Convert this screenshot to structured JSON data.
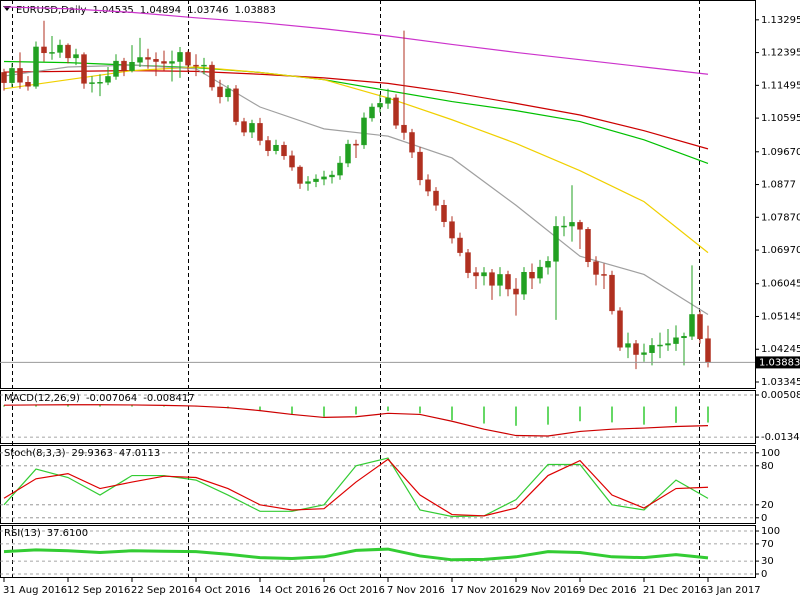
{
  "chart_data": [
    {
      "type": "candlestick",
      "symbol": "EURUSD,Daily",
      "categories": [
        "31 Aug 2016",
        null,
        null,
        null,
        null,
        null,
        null,
        null,
        "12 Sep 2016",
        null,
        null,
        null,
        null,
        null,
        null,
        null,
        "22 Sep 2016",
        null,
        null,
        null,
        null,
        null,
        null,
        null,
        "4 Oct 2016",
        null,
        null,
        null,
        null,
        null,
        null,
        null,
        "14 Oct 2016",
        null,
        null,
        null,
        null,
        null,
        null,
        null,
        "26 Oct 2016",
        null,
        null,
        null,
        null,
        null,
        null,
        null,
        "7 Nov 2016",
        null,
        null,
        null,
        null,
        null,
        null,
        null,
        "17 Nov 2016",
        null,
        null,
        null,
        null,
        null,
        null,
        null,
        "29 Nov 2016",
        null,
        null,
        null,
        null,
        null,
        null,
        null,
        "9 Dec 2016",
        null,
        null,
        null,
        null,
        null,
        null,
        null,
        "21 Dec 2016",
        null,
        null,
        null,
        null,
        null,
        null,
        null,
        "3 Jan 2017"
      ],
      "open": [
        1.1185,
        1.1157,
        1.1196,
        1.1158,
        1.1147,
        1.1255,
        1.1239,
        1.124,
        1.126,
        1.1225,
        1.1234,
        1.1155,
        1.1157,
        1.1158,
        1.1174,
        1.1216,
        1.119,
        1.1213,
        1.1226,
        1.1221,
        1.1215,
        1.121,
        1.1215,
        1.124,
        1.1205,
        1.1203,
        1.1205,
        1.1145,
        1.1118,
        1.114,
        1.105,
        1.1021,
        1.1045,
        1.0998,
        1.097,
        1.0985,
        1.0956,
        1.0925,
        1.088,
        1.0885,
        1.0892,
        1.0898,
        1.0903,
        1.0936,
        1.0988,
        1.0986,
        1.106,
        1.109,
        1.11,
        1.1115,
        1.104,
        1.102,
        1.0966,
        1.089,
        1.0859,
        1.082,
        1.0775,
        1.073,
        1.069,
        1.0635,
        1.0626,
        1.0635,
        1.06,
        1.063,
        1.059,
        1.0576,
        1.0636,
        1.062,
        1.065,
        1.0666,
        1.0762,
        1.0763,
        1.0773,
        1.0754,
        1.0665,
        1.063,
        1.0628,
        1.053,
        1.043,
        1.044,
        1.041,
        1.0415,
        1.0435,
        1.0436,
        1.044,
        1.0456,
        1.046,
        1.052,
        1.04535
      ],
      "high": [
        1.1195,
        1.121,
        1.124,
        1.1175,
        1.127,
        1.1327,
        1.1285,
        1.1275,
        1.1265,
        1.125,
        1.124,
        1.1175,
        1.118,
        1.12,
        1.1235,
        1.1225,
        1.126,
        1.128,
        1.125,
        1.124,
        1.1245,
        1.1245,
        1.1255,
        1.1245,
        1.1235,
        1.1225,
        1.1215,
        1.1165,
        1.115,
        1.115,
        1.106,
        1.1055,
        1.106,
        1.101,
        1.1,
        1.0995,
        1.097,
        1.093,
        1.09,
        1.0905,
        1.0915,
        1.0915,
        1.0955,
        1.1,
        1.1,
        1.1075,
        1.11,
        1.1125,
        1.114,
        1.1125,
        1.13,
        1.103,
        1.098,
        1.0905,
        1.087,
        1.0835,
        1.079,
        1.0745,
        1.07,
        1.065,
        1.065,
        1.0645,
        1.065,
        1.064,
        1.062,
        1.065,
        1.066,
        1.067,
        1.068,
        1.079,
        1.079,
        1.0875,
        1.078,
        1.076,
        1.068,
        1.066,
        1.064,
        1.054,
        1.047,
        1.045,
        1.044,
        1.0455,
        1.047,
        1.048,
        1.049,
        1.047,
        1.0655,
        1.053,
        1.04894
      ],
      "low": [
        1.1135,
        1.1145,
        1.114,
        1.1135,
        1.114,
        1.1215,
        1.122,
        1.1225,
        1.121,
        1.1205,
        1.114,
        1.113,
        1.112,
        1.115,
        1.1165,
        1.1175,
        1.1185,
        1.12,
        1.1195,
        1.1175,
        1.119,
        1.116,
        1.117,
        1.1185,
        1.1175,
        1.118,
        1.1135,
        1.11,
        1.1105,
        1.104,
        1.101,
        1.1005,
        1.0985,
        1.0955,
        1.096,
        1.0945,
        1.0915,
        1.0865,
        1.086,
        1.087,
        1.0875,
        1.088,
        1.089,
        1.0925,
        1.095,
        1.0975,
        1.105,
        1.1075,
        1.1085,
        1.103,
        1.1,
        1.095,
        1.0875,
        1.0845,
        1.0805,
        1.076,
        1.0715,
        1.068,
        1.062,
        1.059,
        1.06,
        1.056,
        1.057,
        1.057,
        1.0517,
        1.056,
        1.059,
        1.0605,
        1.063,
        1.0505,
        1.0735,
        1.072,
        1.07,
        1.065,
        1.06,
        1.059,
        1.052,
        1.042,
        1.04,
        1.037,
        1.039,
        1.038,
        1.04,
        1.042,
        1.042,
        1.038,
        1.045,
        1.044,
        1.03746
      ],
      "close": [
        1.1157,
        1.1196,
        1.1158,
        1.1147,
        1.1255,
        1.1239,
        1.124,
        1.126,
        1.1225,
        1.1234,
        1.1155,
        1.1157,
        1.1158,
        1.1174,
        1.1216,
        1.119,
        1.1213,
        1.1226,
        1.1221,
        1.1215,
        1.121,
        1.1215,
        1.124,
        1.1205,
        1.1203,
        1.1205,
        1.1145,
        1.1118,
        1.114,
        1.105,
        1.1021,
        1.1045,
        1.0998,
        1.097,
        1.0985,
        1.0956,
        1.0925,
        1.088,
        1.0885,
        1.0892,
        1.0898,
        1.0903,
        1.0936,
        1.0988,
        1.0986,
        1.106,
        1.109,
        1.11,
        1.1115,
        1.104,
        1.102,
        1.0966,
        1.089,
        1.0859,
        1.082,
        1.0775,
        1.073,
        1.069,
        1.0635,
        1.0626,
        1.0635,
        1.06,
        1.063,
        1.059,
        1.0576,
        1.0636,
        1.062,
        1.065,
        1.0666,
        1.0762,
        1.0763,
        1.0773,
        1.0754,
        1.0665,
        1.063,
        1.0628,
        1.053,
        1.043,
        1.044,
        1.041,
        1.0415,
        1.0435,
        1.0436,
        1.044,
        1.0456,
        1.046,
        1.052,
        1.04535,
        1.03883
      ],
      "up_color": "#22a022",
      "down_color": "#b03020",
      "overlays": {
        "x": [
          0,
          8,
          16,
          24,
          32,
          40,
          48,
          56,
          64,
          72,
          80,
          88
        ],
        "series": [
          {
            "color": "#cc33cc",
            "values": [
              1.1365,
              1.136,
              1.135,
              1.1335,
              1.1322,
              1.1305,
              1.1285,
              1.1262,
              1.124,
              1.122,
              1.12,
              1.118
            ]
          },
          {
            "color": "#cc0000",
            "values": [
              1.1186,
              1.1188,
              1.119,
              1.1188,
              1.118,
              1.117,
              1.1155,
              1.113,
              1.11,
              1.1068,
              1.1025,
              1.0975
            ]
          },
          {
            "color": "#00c000",
            "values": [
              1.1215,
              1.1212,
              1.1205,
              1.1198,
              1.1185,
              1.1165,
              1.1135,
              1.1105,
              1.108,
              1.105,
              1.1,
              1.0935
            ]
          },
          {
            "color": "#f0d000",
            "values": [
              1.114,
              1.1165,
              1.119,
              1.12,
              1.1185,
              1.1165,
              1.1115,
              1.1055,
              1.099,
              1.0915,
              1.083,
              1.069
            ]
          },
          {
            "color": "#a0a0a0",
            "values": [
              1.1175,
              1.12,
              1.1205,
              1.1195,
              1.109,
              1.103,
              1.101,
              1.095,
              1.082,
              1.068,
              1.063,
              1.052
            ]
          }
        ]
      },
      "xlim": [
        -0.5,
        93.875
      ],
      "ylim": [
        1.0318,
        1.1384
      ],
      "yticks": [
        1.13295,
        1.12395,
        1.11495,
        1.10595,
        {
          "value": 1.0967,
          "label": "1.09670"
        },
        1.0877,
        {
          "value": 1.0787,
          "label": "1.07870"
        },
        {
          "value": 1.0697,
          "label": "1.06970"
        },
        1.06045,
        1.05145,
        1.04245,
        1.03345
      ],
      "grid": false
    },
    {
      "type": "line",
      "title": "MACD(12,26,9)",
      "x": [
        0,
        4,
        8,
        12,
        16,
        20,
        24,
        28,
        32,
        36,
        40,
        44,
        48,
        52,
        56,
        60,
        64,
        68,
        72,
        76,
        80,
        84,
        88
      ],
      "series": [
        {
          "color": "#33cc33",
          "style": "bar",
          "values": [
            0.0005,
            0.0008,
            0.001,
            0.0008,
            0.0006,
            0.0004,
            0.0002,
            -0.0008,
            -0.002,
            -0.0035,
            -0.0045,
            -0.0035,
            -0.002,
            -0.003,
            -0.006,
            -0.0075,
            -0.0085,
            -0.008,
            -0.0065,
            -0.007,
            -0.008,
            -0.0072,
            -0.007064
          ]
        },
        {
          "color": "#cc0000",
          "style": "line",
          "values": [
            0.0006,
            0.0007,
            0.0008,
            0.0008,
            0.0007,
            0.0005,
            0.0002,
            -0.0005,
            -0.0018,
            -0.0035,
            -0.0048,
            -0.0045,
            -0.003,
            -0.0035,
            -0.0065,
            -0.01,
            -0.0128,
            -0.013,
            -0.011,
            -0.01,
            -0.0095,
            -0.0088,
            -0.008417
          ]
        }
      ],
      "xlim": [
        -0.5,
        93.875
      ],
      "ylim": [
        -0.0161,
        0.0073
      ],
      "yticks": [
        0.005088,
        -0.013492
      ],
      "grid": true
    },
    {
      "type": "line",
      "title": "Stoch(8,3,3)",
      "x": [
        0,
        4,
        8,
        12,
        16,
        20,
        24,
        28,
        32,
        36,
        40,
        44,
        48,
        52,
        56,
        60,
        64,
        68,
        72,
        76,
        80,
        84,
        88
      ],
      "series": [
        {
          "color": "#33cc33",
          "style": "line",
          "values": [
            20,
            75,
            62,
            35,
            65,
            65,
            58,
            35,
            10,
            10,
            20,
            80,
            92,
            12,
            2,
            3,
            28,
            82,
            82,
            20,
            12,
            58,
            29.9363
          ]
        },
        {
          "color": "#dd0000",
          "style": "line",
          "values": [
            30,
            60,
            68,
            45,
            55,
            64,
            62,
            45,
            20,
            12,
            14,
            55,
            90,
            35,
            5,
            3,
            15,
            65,
            88,
            35,
            15,
            45,
            47.0113
          ]
        }
      ],
      "xlim": [
        -0.5,
        93.875
      ],
      "ylim": [
        -8,
        112
      ],
      "yticks": [
        100,
        80,
        20,
        0
      ],
      "grid": true
    },
    {
      "type": "line",
      "title": "RSI(13)",
      "x": [
        0,
        4,
        8,
        12,
        16,
        20,
        24,
        28,
        32,
        36,
        40,
        44,
        48,
        52,
        56,
        60,
        64,
        68,
        72,
        76,
        80,
        84,
        88
      ],
      "series": [
        {
          "color": "#33cc33",
          "style": "line",
          "values": [
            52,
            56,
            54,
            50,
            54,
            53,
            52,
            46,
            38,
            36,
            40,
            55,
            58,
            42,
            33,
            34,
            40,
            52,
            50,
            40,
            38,
            45,
            37.61
          ],
          "value_labels": [
            null,
            null,
            null,
            null,
            null,
            null,
            null,
            null,
            null,
            null,
            null,
            null,
            null,
            null,
            null,
            null,
            null,
            null,
            null,
            null,
            null,
            null,
            "37.6100"
          ]
        }
      ],
      "xlim": [
        -0.5,
        93.875
      ],
      "ylim": [
        -7,
        114
      ],
      "yticks": [
        100,
        70,
        30,
        0
      ],
      "grid": true
    }
  ]
}
